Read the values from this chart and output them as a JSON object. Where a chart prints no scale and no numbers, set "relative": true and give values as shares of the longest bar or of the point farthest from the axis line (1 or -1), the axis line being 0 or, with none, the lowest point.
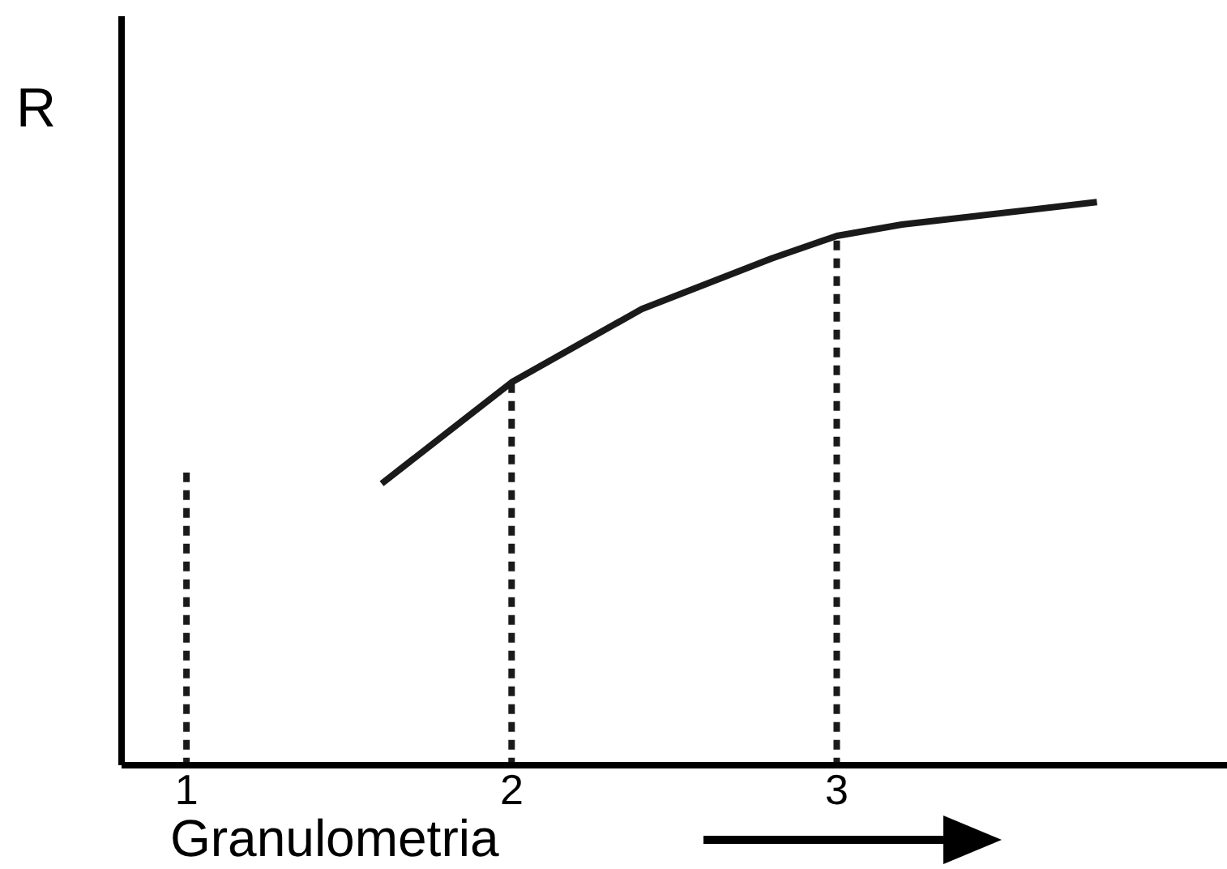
{
  "chart_data": {
    "type": "line",
    "relative": true,
    "xlabel": "Granulometria",
    "ylabel": "R",
    "categories": [
      "1",
      null,
      null,
      null,
      null,
      "2",
      null,
      null,
      null,
      null,
      "3",
      null,
      null,
      null,
      null,
      null
    ],
    "series": [
      {
        "color": "#1a1a1a",
        "line_style": "solid",
        "values": [
          null,
          null,
          null,
          0.5,
          null,
          0.68,
          null,
          0.81,
          null,
          0.9,
          0.94,
          0.96,
          null,
          null,
          1,
          null
        ]
      },
      {
        "type": "bar",
        "color": "#1a1a1a",
        "line_style": "dashed",
        "values": [
          0.52,
          null,
          null,
          null,
          null,
          0.68,
          null,
          null,
          null,
          null,
          0.94,
          null,
          null,
          null,
          null,
          null
        ]
      }
    ],
    "marker": "none",
    "grid": false,
    "legend": false,
    "tick_labels": "x"
  }
}
